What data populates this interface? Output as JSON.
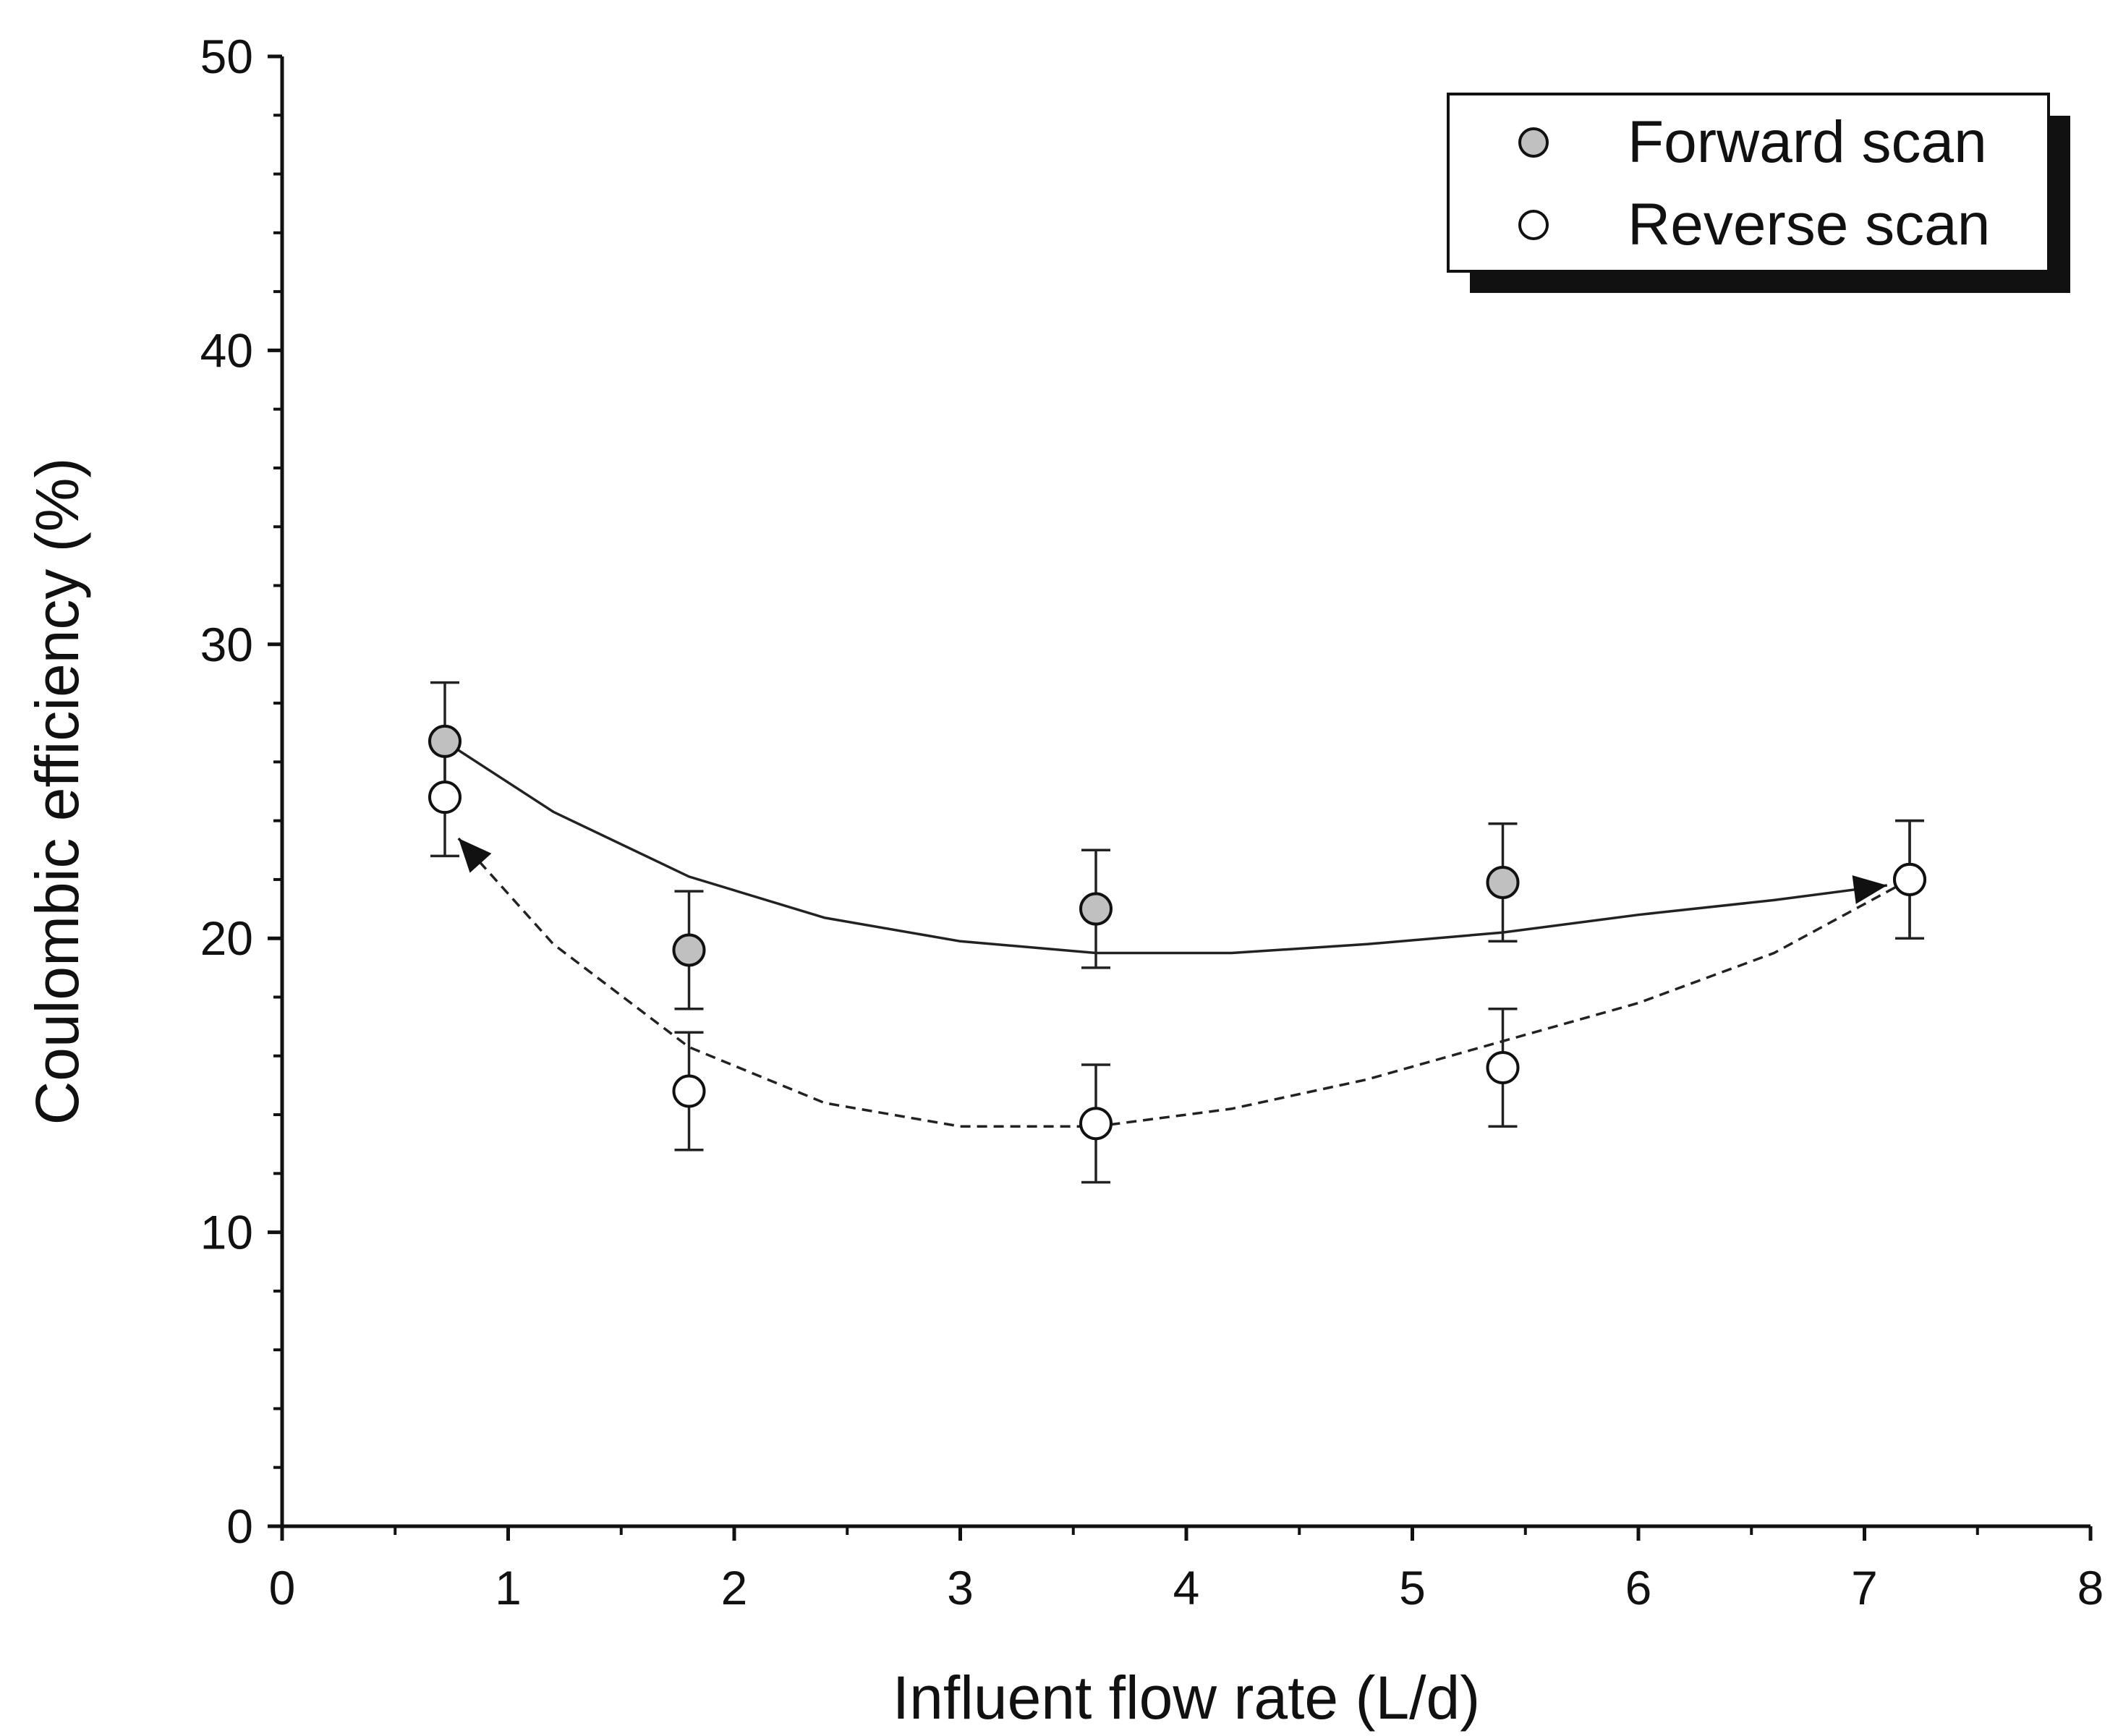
{
  "chart_data": {
    "type": "scatter",
    "title": "",
    "xlabel": "Influent flow rate (L/d)",
    "ylabel": "Coulombic efficiency (%)",
    "xlim": [
      0,
      8
    ],
    "ylim": [
      0,
      50
    ],
    "xticks": [
      "0",
      "1",
      "2",
      "3",
      "4",
      "5",
      "6",
      "7",
      "8"
    ],
    "yticks": [
      "0",
      "10",
      "20",
      "30",
      "40",
      "50"
    ],
    "legend_position": "top-right",
    "series": [
      {
        "name": "Forward scan",
        "marker": "filled-circle",
        "marker_color": "#c0c0c0",
        "line_style": "solid",
        "x": [
          0.72,
          1.8,
          3.6,
          5.4,
          7.2
        ],
        "y": [
          26.7,
          19.6,
          21.0,
          21.9,
          22.0
        ],
        "yerr": [
          2.0,
          2.0,
          2.0,
          2.0,
          2.0
        ],
        "trend": [
          [
            0.72,
            26.7
          ],
          [
            1.2,
            24.3
          ],
          [
            1.8,
            22.1
          ],
          [
            2.4,
            20.7
          ],
          [
            3.0,
            19.9
          ],
          [
            3.6,
            19.5
          ],
          [
            4.2,
            19.5
          ],
          [
            4.8,
            19.8
          ],
          [
            5.4,
            20.2
          ],
          [
            6.0,
            20.8
          ],
          [
            6.6,
            21.3
          ],
          [
            7.1,
            21.8
          ]
        ]
      },
      {
        "name": "Reverse scan",
        "marker": "open-circle",
        "marker_color": "#ffffff",
        "line_style": "dashed",
        "x": [
          0.72,
          1.8,
          3.6,
          5.4,
          7.2
        ],
        "y": [
          24.8,
          14.8,
          13.7,
          15.6,
          22.0
        ],
        "yerr": [
          2.0,
          2.0,
          2.0,
          2.0,
          2.0
        ],
        "trend": [
          [
            7.2,
            22.0
          ],
          [
            6.6,
            19.5
          ],
          [
            6.0,
            17.8
          ],
          [
            5.4,
            16.5
          ],
          [
            4.8,
            15.2
          ],
          [
            4.2,
            14.2
          ],
          [
            3.6,
            13.6
          ],
          [
            3.0,
            13.6
          ],
          [
            2.4,
            14.4
          ],
          [
            1.8,
            16.3
          ],
          [
            1.2,
            19.8
          ],
          [
            0.78,
            23.4
          ]
        ]
      }
    ]
  }
}
